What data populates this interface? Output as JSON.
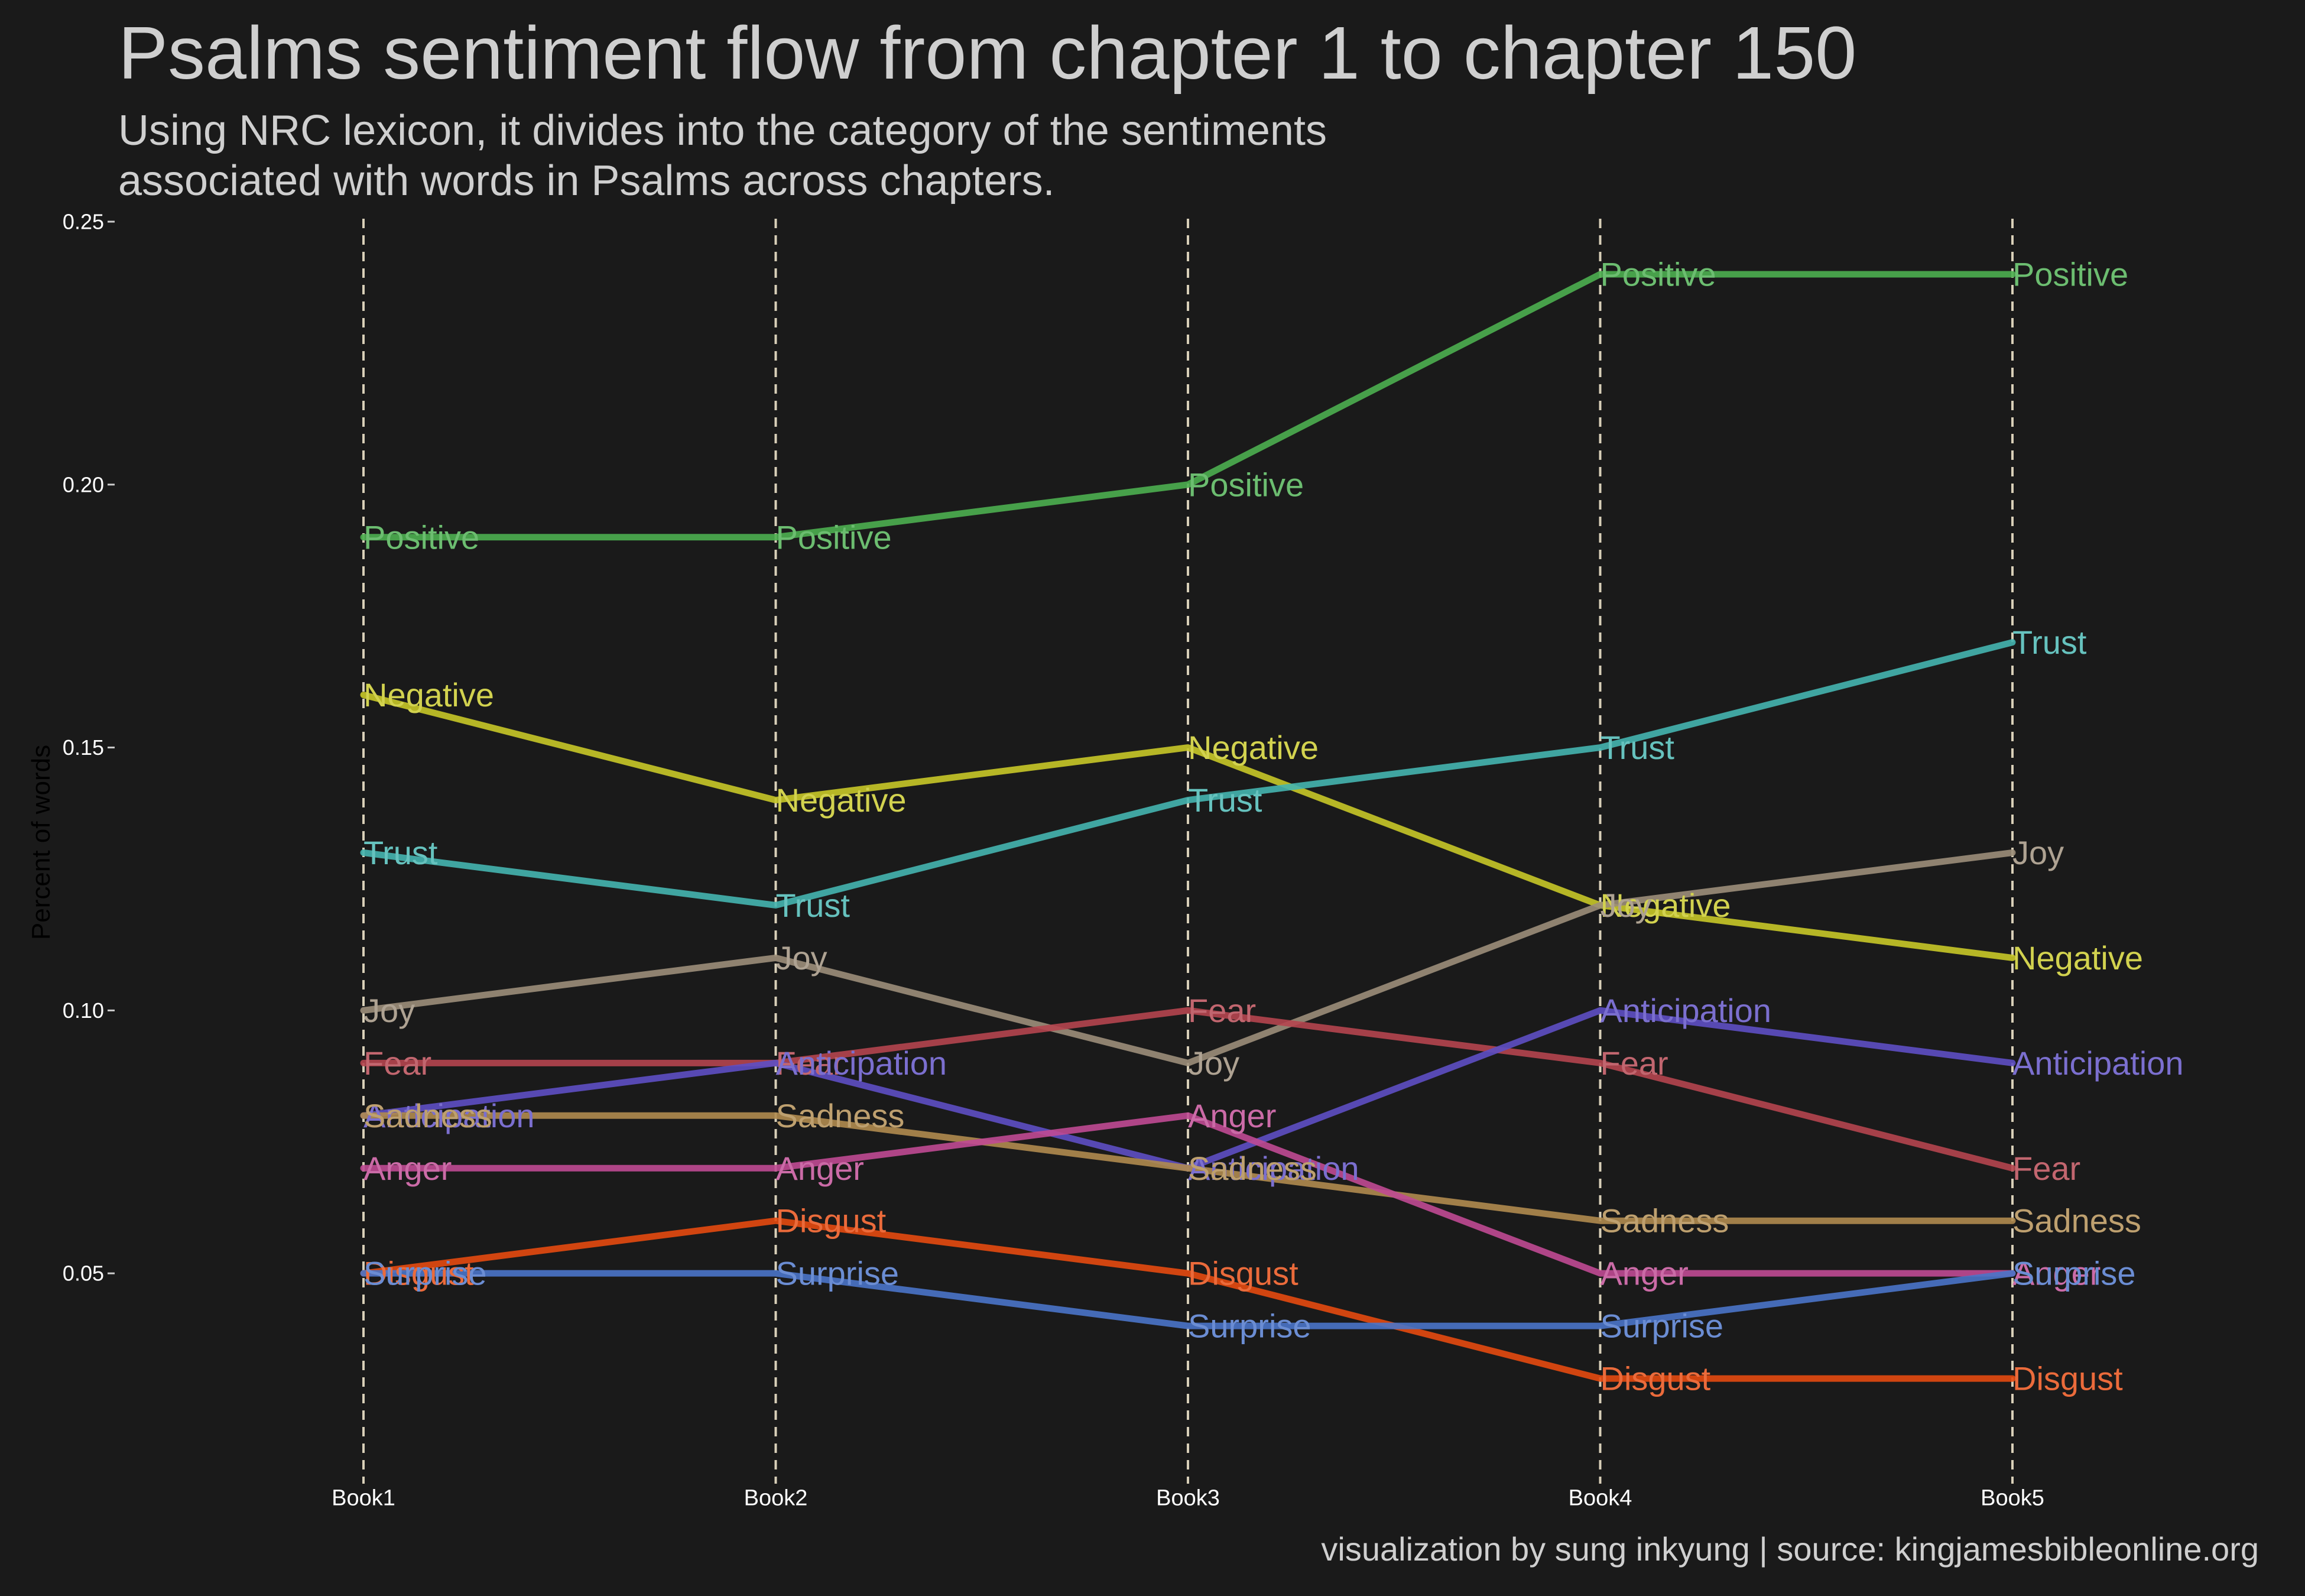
{
  "chart_data": {
    "type": "line",
    "title": "Psalms sentiment flow from chapter 1 to chapter 150",
    "subtitle": [
      "Using NRC lexicon, it divides into the category of the sentiments",
      "associated with words in Psalms across chapters."
    ],
    "caption": "visualization by sung inkyung | source: kingjamesbibleonline.org",
    "xlabel": "",
    "ylabel": "Percent of words",
    "categories": [
      "Book1",
      "Book2",
      "Book3",
      "Book4",
      "Book5"
    ],
    "ylim": [
      0.01,
      0.25
    ],
    "yticks": [
      0.05,
      0.1,
      0.15,
      0.2,
      0.25
    ],
    "ytick_labels": [
      "0.05",
      "0.10",
      "0.15",
      "0.20",
      "0.25"
    ],
    "grid": false,
    "vertical_dashed_lines": true,
    "legend": "none",
    "series": [
      {
        "name": "Positive",
        "values": [
          0.19,
          0.19,
          0.2,
          0.24,
          0.24
        ],
        "color": "#4caf50"
      },
      {
        "name": "Negative",
        "values": [
          0.16,
          0.14,
          0.15,
          0.12,
          0.11
        ],
        "color": "#c8c828"
      },
      {
        "name": "Trust",
        "values": [
          0.13,
          0.12,
          0.14,
          0.15,
          0.17
        ],
        "color": "#45b5b0"
      },
      {
        "name": "Joy",
        "values": [
          0.1,
          0.11,
          0.09,
          0.12,
          0.13
        ],
        "color": "#9c8e7a"
      },
      {
        "name": "Fear",
        "values": [
          0.09,
          0.09,
          0.1,
          0.09,
          0.07
        ],
        "color": "#b5454f"
      },
      {
        "name": "Anticipation",
        "values": [
          0.08,
          0.09,
          0.07,
          0.1,
          0.09
        ],
        "color": "#5e4fc4"
      },
      {
        "name": "Sadness",
        "values": [
          0.08,
          0.08,
          0.07,
          0.06,
          0.06
        ],
        "color": "#b08b4f"
      },
      {
        "name": "Anger",
        "values": [
          0.07,
          0.07,
          0.08,
          0.05,
          0.05
        ],
        "color": "#c04a94"
      },
      {
        "name": "Disgust",
        "values": [
          0.05,
          0.06,
          0.05,
          0.03,
          0.03
        ],
        "color": "#e64a10"
      },
      {
        "name": "Surprise",
        "values": [
          0.05,
          0.05,
          0.04,
          0.04,
          0.05
        ],
        "color": "#4a74c9"
      }
    ]
  }
}
